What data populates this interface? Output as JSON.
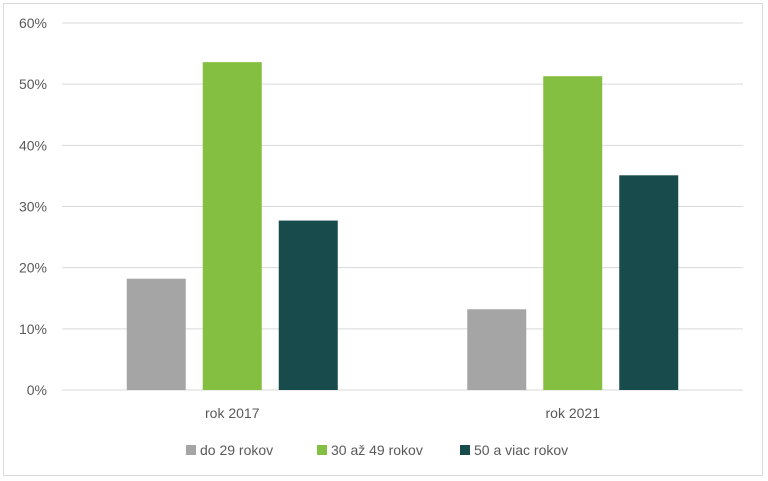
{
  "chart_data": {
    "type": "bar",
    "title": "",
    "xlabel": "",
    "ylabel": "",
    "categories": [
      "rok 2017",
      "rok 2021"
    ],
    "series": [
      {
        "name": "do 29 rokov",
        "values": [
          18.2,
          13.2
        ],
        "color": "#a5a5a5"
      },
      {
        "name": "30 až 49 rokov",
        "values": [
          53.6,
          51.3
        ],
        "color": "#84bf41"
      },
      {
        "name": "50 a viac rokov",
        "values": [
          27.7,
          35.1
        ],
        "color": "#174b4c"
      }
    ],
    "ylim": [
      0,
      60
    ],
    "yticks": [
      "0%",
      "10%",
      "20%",
      "30%",
      "40%",
      "50%",
      "60%"
    ],
    "grid": true,
    "legend": "bottom"
  }
}
